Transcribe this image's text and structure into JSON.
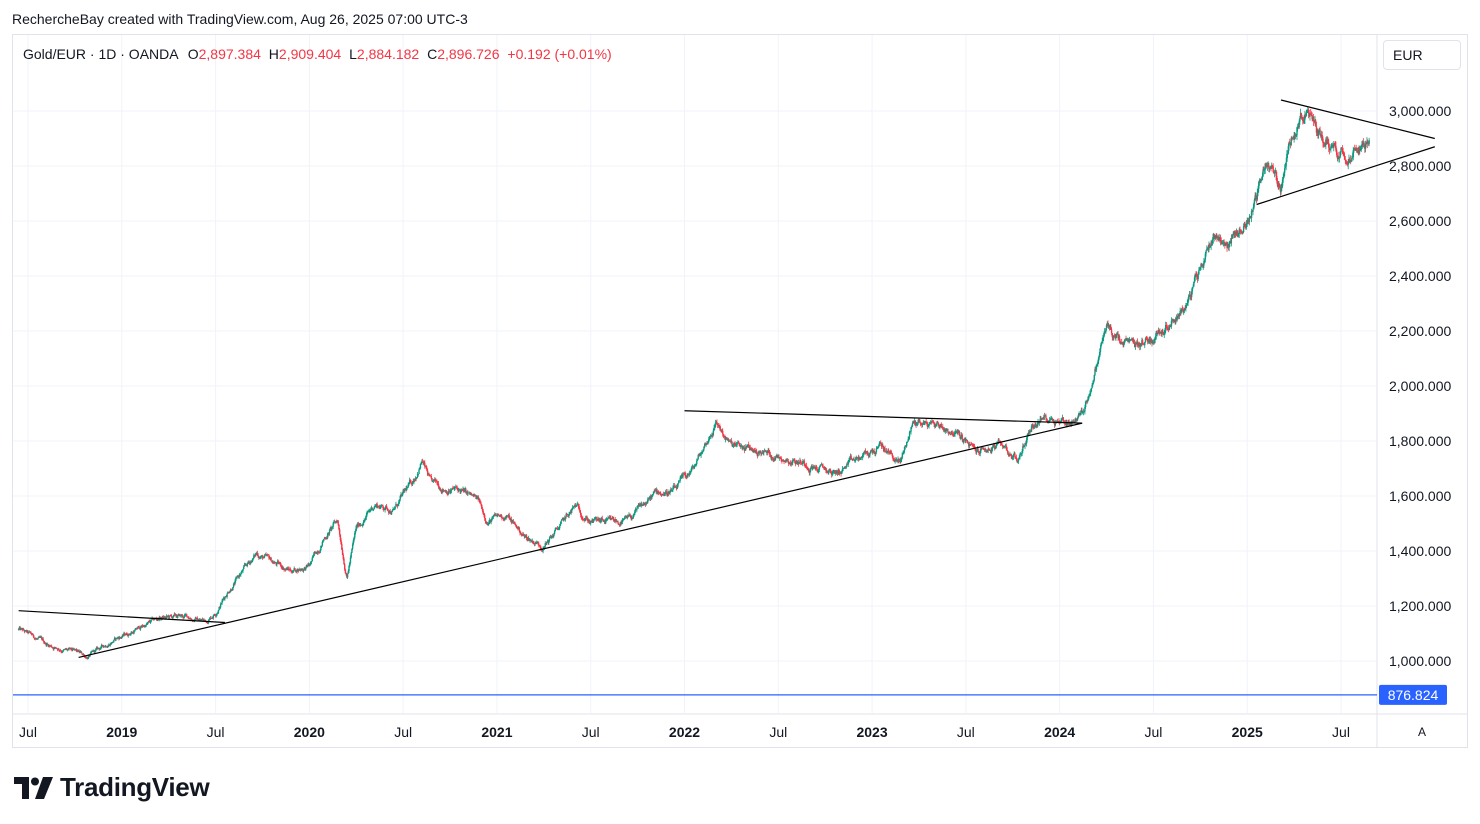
{
  "header": {
    "credit": "RechercheBay created with TradingView.com, Aug 26, 2025 07:00 UTC-3"
  },
  "legend": {
    "symbol": "Gold/EUR · 1D · OANDA",
    "open_label": "O",
    "open": "2,897.384",
    "high_label": "H",
    "high": "2,909.404",
    "low_label": "L",
    "low": "2,884.182",
    "close_label": "C",
    "close": "2,896.726",
    "change": "+0.192 (+0.01%)"
  },
  "currency_label": "EUR",
  "auto_scale_label": "A",
  "brand": "TradingView",
  "colors": {
    "up": "#089981",
    "down": "#f23645",
    "hline": "#2962ff",
    "trend": "#000000"
  },
  "chart_data": {
    "type": "candlestick",
    "symbol": "Gold/EUR",
    "interval": "1D",
    "source": "OANDA",
    "x_tick_labels": [
      "Jul",
      "2019",
      "Jul",
      "2020",
      "Jul",
      "2021",
      "Jul",
      "2022",
      "Jul",
      "2023",
      "Jul",
      "2024",
      "Jul",
      "2025",
      "Jul"
    ],
    "x_ticks": [
      {
        "label": "Jul",
        "t": 2018.5
      },
      {
        "label": "2019",
        "t": 2019.0
      },
      {
        "label": "Jul",
        "t": 2019.5
      },
      {
        "label": "2020",
        "t": 2020.0
      },
      {
        "label": "Jul",
        "t": 2020.5
      },
      {
        "label": "2021",
        "t": 2021.0
      },
      {
        "label": "Jul",
        "t": 2021.5
      },
      {
        "label": "2022",
        "t": 2022.0
      },
      {
        "label": "Jul",
        "t": 2022.5
      },
      {
        "label": "2023",
        "t": 2023.0
      },
      {
        "label": "Jul",
        "t": 2023.5
      },
      {
        "label": "2024",
        "t": 2024.0
      },
      {
        "label": "Jul",
        "t": 2024.5
      },
      {
        "label": "2025",
        "t": 2025.0
      },
      {
        "label": "Jul",
        "t": 2025.5
      }
    ],
    "y_ticks": [
      1000,
      1200,
      1400,
      1600,
      1800,
      2000,
      2200,
      2400,
      2600,
      2800,
      3000
    ],
    "y_tick_labels": [
      "1,000.000",
      "1,200.000",
      "1,400.000",
      "1,600.000",
      "1,800.000",
      "2,000.000",
      "2,200.000",
      "2,400.000",
      "2,600.000",
      "2,800.000",
      "3,000.000"
    ],
    "xlim": [
      2018.45,
      2026.1
    ],
    "ylim": [
      820,
      3250
    ],
    "grid": true,
    "price_path": [
      [
        2018.45,
        1115
      ],
      [
        2018.6,
        1060
      ],
      [
        2018.75,
        1030
      ],
      [
        2018.82,
        1015
      ],
      [
        2018.95,
        1075
      ],
      [
        2019.05,
        1105
      ],
      [
        2019.2,
        1155
      ],
      [
        2019.35,
        1160
      ],
      [
        2019.45,
        1145
      ],
      [
        2019.5,
        1180
      ],
      [
        2019.57,
        1260
      ],
      [
        2019.65,
        1330
      ],
      [
        2019.72,
        1390
      ],
      [
        2019.8,
        1360
      ],
      [
        2019.9,
        1330
      ],
      [
        2020.0,
        1345
      ],
      [
        2020.08,
        1450
      ],
      [
        2020.15,
        1510
      ],
      [
        2020.2,
        1310
      ],
      [
        2020.25,
        1480
      ],
      [
        2020.35,
        1570
      ],
      [
        2020.45,
        1550
      ],
      [
        2020.55,
        1650
      ],
      [
        2020.6,
        1730
      ],
      [
        2020.65,
        1640
      ],
      [
        2020.8,
        1620
      ],
      [
        2020.9,
        1580
      ],
      [
        2020.95,
        1510
      ],
      [
        2021.05,
        1530
      ],
      [
        2021.15,
        1450
      ],
      [
        2021.25,
        1420
      ],
      [
        2021.3,
        1460
      ],
      [
        2021.42,
        1560
      ],
      [
        2021.5,
        1510
      ],
      [
        2021.6,
        1500
      ],
      [
        2021.7,
        1510
      ],
      [
        2021.85,
        1610
      ],
      [
        2021.95,
        1620
      ],
      [
        2022.05,
        1700
      ],
      [
        2022.17,
        1870
      ],
      [
        2022.25,
        1780
      ],
      [
        2022.4,
        1760
      ],
      [
        2022.55,
        1740
      ],
      [
        2022.65,
        1720
      ],
      [
        2022.8,
        1680
      ],
      [
        2022.95,
        1740
      ],
      [
        2023.05,
        1780
      ],
      [
        2023.15,
        1720
      ],
      [
        2023.22,
        1870
      ],
      [
        2023.35,
        1860
      ],
      [
        2023.45,
        1830
      ],
      [
        2023.55,
        1760
      ],
      [
        2023.7,
        1780
      ],
      [
        2023.78,
        1730
      ],
      [
        2023.85,
        1860
      ],
      [
        2023.95,
        1890
      ],
      [
        2024.05,
        1870
      ],
      [
        2024.12,
        1900
      ],
      [
        2024.18,
        2030
      ],
      [
        2024.25,
        2220
      ],
      [
        2024.32,
        2150
      ],
      [
        2024.4,
        2140
      ],
      [
        2024.5,
        2180
      ],
      [
        2024.6,
        2250
      ],
      [
        2024.68,
        2300
      ],
      [
        2024.75,
        2420
      ],
      [
        2024.82,
        2560
      ],
      [
        2024.9,
        2520
      ],
      [
        2025.0,
        2600
      ],
      [
        2025.05,
        2690
      ],
      [
        2025.1,
        2820
      ],
      [
        2025.18,
        2720
      ],
      [
        2025.25,
        2950
      ],
      [
        2025.3,
        3000
      ],
      [
        2025.38,
        2920
      ],
      [
        2025.45,
        2880
      ],
      [
        2025.52,
        2850
      ],
      [
        2025.6,
        2900
      ],
      [
        2025.65,
        2880
      ]
    ],
    "last_close": 2896.726,
    "horizontal_line": {
      "value": 876.824,
      "label": "876.824"
    },
    "trendlines": [
      [
        [
          2018.45,
          1183
        ],
        [
          2019.55,
          1140
        ]
      ],
      [
        [
          2018.77,
          1013
        ],
        [
          2024.12,
          1865
        ]
      ],
      [
        [
          2022.0,
          1910
        ],
        [
          2024.12,
          1865
        ]
      ],
      [
        [
          2025.05,
          2660
        ],
        [
          2026.0,
          2870
        ]
      ],
      [
        [
          2025.18,
          3040
        ],
        [
          2026.0,
          2900
        ]
      ]
    ]
  }
}
